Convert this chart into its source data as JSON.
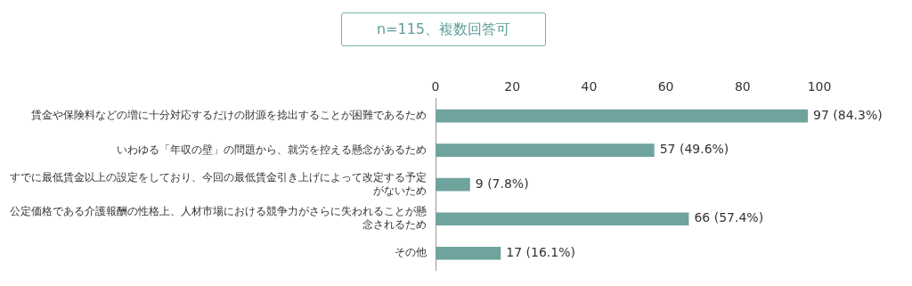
{
  "chart_data": {
    "type": "bar",
    "orientation": "horizontal",
    "title": "n=115、複数回答可",
    "categories": [
      "賃金や保険料などの増に十分対応するだけの財源を捻出することが困難であるため",
      "いわゆる「年収の壁」の問題から、就労を控える懸念があるため",
      "すでに最低賃金以上の設定をしており、今回の最低賃金引き上げによって改定する予定がないため",
      "公定価格である介護報酬の性格上、人材市場における競争力がさらに失われることが懸念されるため",
      "その他"
    ],
    "values": [
      97,
      57,
      9,
      66,
      17
    ],
    "value_labels": [
      "97 (84.3%)",
      "57 (49.6%)",
      "9 (7.8%)",
      "66 (57.4%)",
      "17 (16.1%)"
    ],
    "color": "#6fa39e",
    "xlim": [
      0,
      100
    ],
    "xticks": [
      0,
      20,
      40,
      60,
      80,
      100
    ],
    "grid": false,
    "legend": false
  }
}
